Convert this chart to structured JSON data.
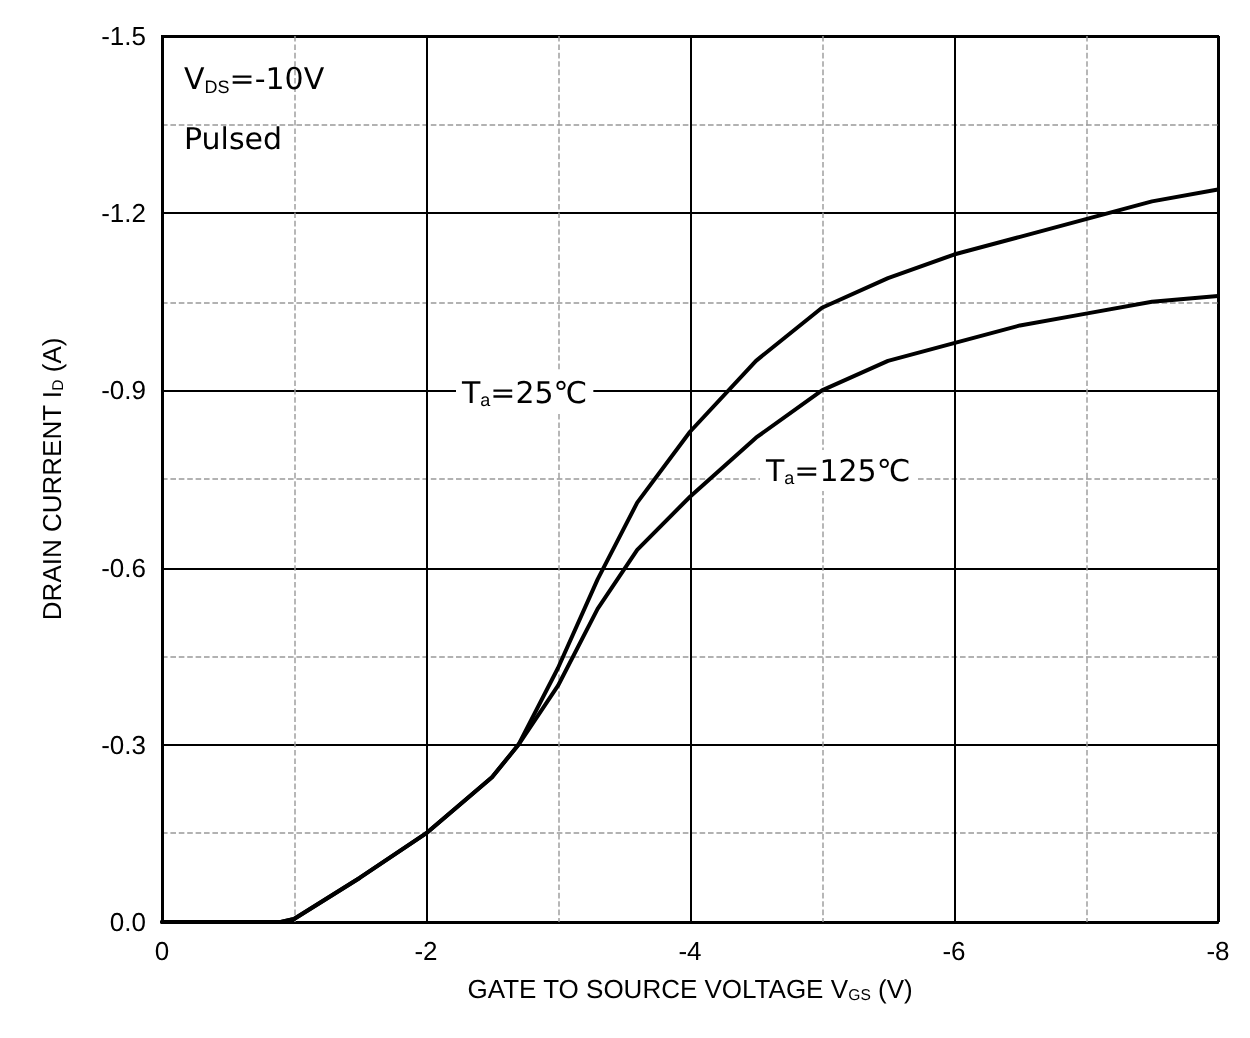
{
  "chart_data": {
    "type": "line",
    "xlabel": "GATE TO SOURCE VOLTAGE V$_{GS}$ (V)",
    "ylabel": "DRAIN CURRENT I$_{D}$ (A)",
    "x": [
      0,
      -0.5,
      -0.9,
      -1.0,
      -1.5,
      -2.0,
      -2.5,
      -2.7,
      -3.0,
      -3.3,
      -3.6,
      -4.0,
      -4.5,
      -5.0,
      -5.5,
      -6.0,
      -6.5,
      -7.0,
      -7.5,
      -8.0
    ],
    "series": [
      {
        "color": "#000000",
        "values": [
          0,
          0,
          0,
          -0.005,
          -0.075,
          -0.15,
          -0.245,
          -0.3,
          -0.43,
          -0.58,
          -0.71,
          -0.83,
          -0.95,
          -1.04,
          -1.09,
          -1.13,
          -1.16,
          -1.19,
          -1.22,
          -1.24
        ]
      },
      {
        "color": "#000000",
        "values": [
          0,
          0,
          0,
          -0.005,
          -0.075,
          -0.15,
          -0.245,
          -0.3,
          -0.4,
          -0.53,
          -0.63,
          -0.72,
          -0.82,
          -0.9,
          -0.95,
          -0.98,
          -1.01,
          -1.03,
          -1.05,
          -1.06
        ]
      }
    ],
    "xlim": [
      0,
      -8
    ],
    "xticks": [
      0,
      -2,
      -4,
      -6,
      -8
    ],
    "ylim": [
      0,
      -1.5
    ],
    "yticks": [
      {
        "value": 0,
        "label": "0.0"
      },
      -0.3,
      -0.6,
      -0.9,
      -1.2,
      -1.5
    ],
    "grid": true,
    "marker": "none",
    "line_style": "solid",
    "annotations": [
      "V$_{DS}$=-10V",
      "Pulsed",
      "T$_{a}$=25℃",
      "T$_{a}$=125℃"
    ]
  }
}
